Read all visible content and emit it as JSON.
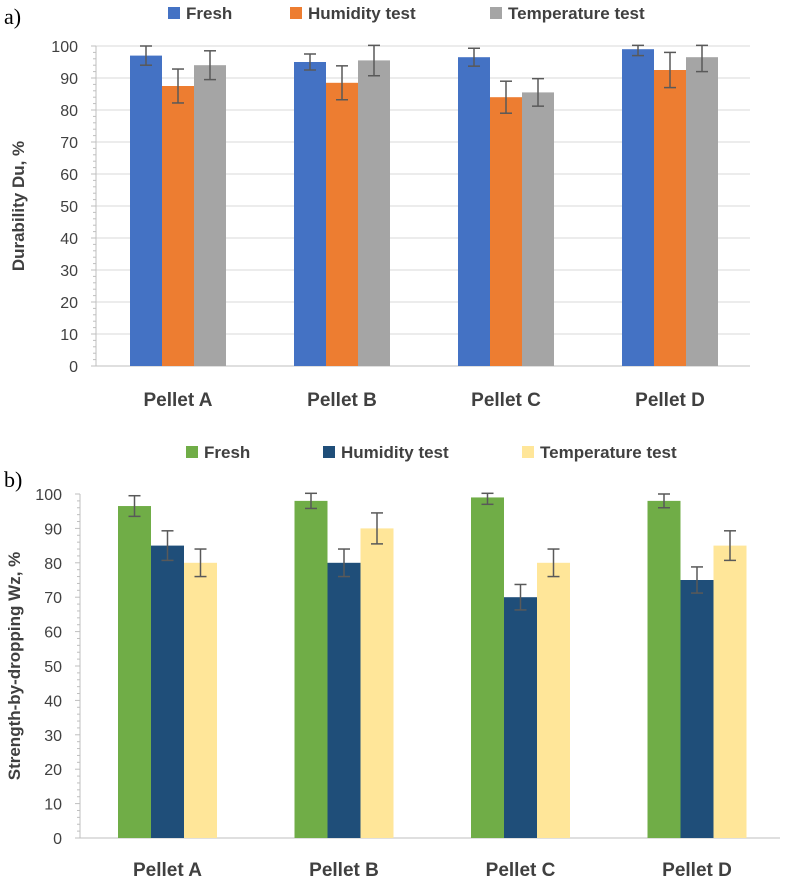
{
  "chart_data": [
    {
      "type": "bar",
      "panel_label": "a)",
      "title": "",
      "xlabel": "",
      "ylabel": "Durability Du, %",
      "ylim": [
        0,
        100
      ],
      "yticks": [
        0,
        10,
        20,
        30,
        40,
        50,
        60,
        70,
        80,
        90,
        100
      ],
      "grid": true,
      "legend_position": "top",
      "categories": [
        "Pellet A",
        "Pellet B",
        "Pellet C",
        "Pellet D"
      ],
      "series": [
        {
          "name": "Fresh",
          "color": "#4472C4",
          "values": [
            97,
            95,
            96.5,
            99
          ],
          "errors": [
            3,
            2.5,
            2.8,
            2
          ]
        },
        {
          "name": "Humidity test",
          "color": "#ED7D31",
          "values": [
            87.5,
            88.5,
            84,
            92.5
          ],
          "errors": [
            5.3,
            5.3,
            5,
            5.5
          ]
        },
        {
          "name": "Temperature test",
          "color": "#A5A5A5",
          "values": [
            94,
            95.5,
            85.5,
            96.5
          ],
          "errors": [
            4.5,
            4.8,
            4.3,
            4.5
          ]
        }
      ]
    },
    {
      "type": "bar",
      "panel_label": "b)",
      "title": "",
      "xlabel": "",
      "ylabel": "Strength-by-dropping  Wz, %",
      "ylim": [
        0,
        100
      ],
      "yticks": [
        0,
        10,
        20,
        30,
        40,
        50,
        60,
        70,
        80,
        90,
        100
      ],
      "grid": false,
      "legend_position": "top",
      "categories": [
        "Pellet A",
        "Pellet B",
        "Pellet C",
        "Pellet D"
      ],
      "series": [
        {
          "name": "Fresh",
          "color": "#70AD47",
          "values": [
            96.5,
            98,
            99,
            98
          ],
          "errors": [
            3,
            2.2,
            2,
            2
          ]
        },
        {
          "name": "Humidity test",
          "color": "#1F4E79",
          "values": [
            85,
            80,
            70,
            75
          ],
          "errors": [
            4.3,
            4,
            3.7,
            3.8
          ]
        },
        {
          "name": "Temperature test",
          "color": "#FFE699",
          "values": [
            80,
            90,
            80,
            85
          ],
          "errors": [
            4,
            4.5,
            4,
            4.3
          ]
        }
      ]
    }
  ]
}
